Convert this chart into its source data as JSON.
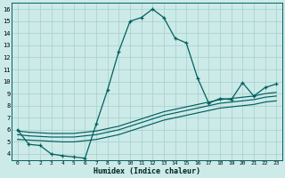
{
  "xlabel": "Humidex (Indice chaleur)",
  "bg_color": "#cceae8",
  "line_color": "#006060",
  "grid_color": "#aad4d0",
  "xlim": [
    -0.5,
    23.5
  ],
  "ylim": [
    3.5,
    16.5
  ],
  "xticks": [
    0,
    1,
    2,
    3,
    4,
    5,
    6,
    7,
    8,
    9,
    10,
    11,
    12,
    13,
    14,
    15,
    16,
    17,
    18,
    19,
    20,
    21,
    22,
    23
  ],
  "yticks": [
    4,
    5,
    6,
    7,
    8,
    9,
    10,
    11,
    12,
    13,
    14,
    15,
    16
  ],
  "curve1_x": [
    0,
    1,
    2,
    3,
    4,
    5,
    6,
    7,
    8,
    9,
    10,
    11,
    12,
    13,
    14,
    15,
    16,
    17,
    18,
    19,
    20,
    21,
    22,
    23
  ],
  "curve1_y": [
    6.0,
    4.8,
    4.7,
    4.0,
    3.85,
    3.75,
    3.65,
    6.5,
    9.3,
    12.5,
    15.0,
    15.3,
    16.0,
    15.3,
    13.6,
    13.2,
    10.3,
    8.2,
    8.6,
    8.5,
    9.9,
    8.8,
    9.5,
    9.8
  ],
  "curve2_x": [
    0,
    1,
    2,
    3,
    4,
    5,
    6,
    7,
    8,
    9,
    10,
    11,
    12,
    13,
    14,
    15,
    16,
    17,
    18,
    19,
    20,
    21,
    22,
    23
  ],
  "curve2_y": [
    5.9,
    5.8,
    5.75,
    5.7,
    5.7,
    5.7,
    5.8,
    5.9,
    6.1,
    6.3,
    6.6,
    6.9,
    7.2,
    7.5,
    7.7,
    7.9,
    8.1,
    8.3,
    8.5,
    8.6,
    8.7,
    8.8,
    9.0,
    9.1
  ],
  "curve3_x": [
    0,
    1,
    2,
    3,
    4,
    5,
    6,
    7,
    8,
    9,
    10,
    11,
    12,
    13,
    14,
    15,
    16,
    17,
    18,
    19,
    20,
    21,
    22,
    23
  ],
  "curve3_y": [
    5.6,
    5.5,
    5.45,
    5.4,
    5.4,
    5.4,
    5.5,
    5.6,
    5.8,
    6.0,
    6.3,
    6.6,
    6.9,
    7.2,
    7.4,
    7.6,
    7.8,
    8.0,
    8.2,
    8.3,
    8.4,
    8.5,
    8.7,
    8.8
  ],
  "curve4_x": [
    0,
    1,
    2,
    3,
    4,
    5,
    6,
    7,
    8,
    9,
    10,
    11,
    12,
    13,
    14,
    15,
    16,
    17,
    18,
    19,
    20,
    21,
    22,
    23
  ],
  "curve4_y": [
    5.2,
    5.15,
    5.1,
    5.05,
    5.0,
    5.0,
    5.1,
    5.2,
    5.4,
    5.6,
    5.9,
    6.2,
    6.5,
    6.8,
    7.0,
    7.2,
    7.4,
    7.6,
    7.8,
    7.9,
    8.0,
    8.1,
    8.3,
    8.4
  ]
}
